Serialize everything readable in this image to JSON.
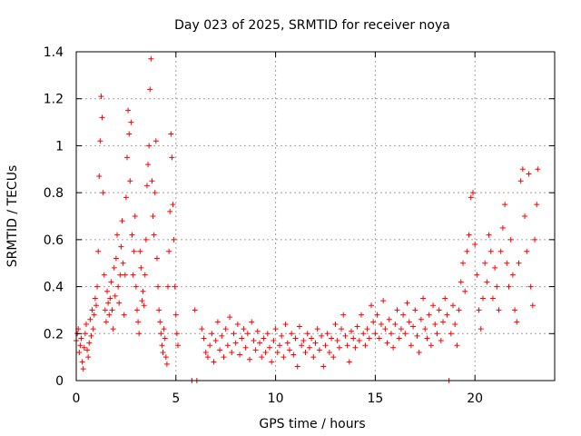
{
  "chart_data": {
    "type": "scatter",
    "title": "Day 023 of 2025, SRMTID for receiver noya",
    "xlabel": "GPS time / hours",
    "ylabel": "SRMTID / TECUs",
    "xlim": [
      0,
      24
    ],
    "ylim": [
      0,
      1.4
    ],
    "xticks": [
      0,
      5,
      10,
      15,
      20
    ],
    "xtick_labels": [
      "0",
      "5",
      "10",
      "15",
      "20"
    ],
    "yticks": [
      0,
      0.2,
      0.4,
      0.6,
      0.8,
      1.0,
      1.2,
      1.4
    ],
    "ytick_labels": [
      "0",
      "0.2",
      "0.4",
      "0.6",
      "0.8",
      "1",
      "1.2",
      "1.4"
    ],
    "grid": true,
    "marker": "+",
    "color": "#ff0000",
    "series": [
      {
        "name": "SRMTID",
        "points": [
          [
            0.0,
            0.17
          ],
          [
            0.05,
            0.2
          ],
          [
            0.1,
            0.22
          ],
          [
            0.15,
            0.12
          ],
          [
            0.2,
            0.15
          ],
          [
            0.25,
            0.18
          ],
          [
            0.3,
            0.08
          ],
          [
            0.35,
            0.05
          ],
          [
            0.4,
            0.14
          ],
          [
            0.45,
            0.2
          ],
          [
            0.5,
            0.24
          ],
          [
            0.55,
            0.13
          ],
          [
            0.6,
            0.1
          ],
          [
            0.65,
            0.16
          ],
          [
            0.7,
            0.26
          ],
          [
            0.75,
            0.19
          ],
          [
            0.8,
            0.3
          ],
          [
            0.85,
            0.22
          ],
          [
            0.9,
            0.28
          ],
          [
            0.95,
            0.35
          ],
          [
            1.0,
            0.32
          ],
          [
            1.05,
            0.4
          ],
          [
            1.1,
            0.55
          ],
          [
            1.15,
            0.87
          ],
          [
            1.2,
            1.02
          ],
          [
            1.25,
            1.21
          ],
          [
            1.3,
            1.12
          ],
          [
            1.35,
            0.8
          ],
          [
            1.4,
            0.45
          ],
          [
            1.45,
            0.3
          ],
          [
            1.5,
            0.25
          ],
          [
            1.55,
            0.38
          ],
          [
            1.6,
            0.33
          ],
          [
            1.65,
            0.28
          ],
          [
            1.7,
            0.35
          ],
          [
            1.75,
            0.42
          ],
          [
            1.8,
            0.3
          ],
          [
            1.85,
            0.22
          ],
          [
            1.9,
            0.48
          ],
          [
            1.95,
            0.36
          ],
          [
            2.0,
            0.52
          ],
          [
            2.05,
            0.62
          ],
          [
            2.1,
            0.4
          ],
          [
            2.15,
            0.33
          ],
          [
            2.2,
            0.45
          ],
          [
            2.25,
            0.57
          ],
          [
            2.3,
            0.68
          ],
          [
            2.35,
            0.5
          ],
          [
            2.4,
            0.28
          ],
          [
            2.45,
            0.45
          ],
          [
            2.5,
            0.78
          ],
          [
            2.55,
            0.95
          ],
          [
            2.6,
            1.15
          ],
          [
            2.65,
            1.05
          ],
          [
            2.7,
            0.85
          ],
          [
            2.75,
            1.1
          ],
          [
            2.8,
            0.62
          ],
          [
            2.85,
            0.45
          ],
          [
            2.9,
            0.55
          ],
          [
            2.95,
            0.7
          ],
          [
            3.0,
            0.4
          ],
          [
            3.05,
            0.3
          ],
          [
            3.1,
            0.25
          ],
          [
            3.15,
            0.2
          ],
          [
            3.2,
            0.55
          ],
          [
            3.25,
            0.48
          ],
          [
            3.3,
            0.34
          ],
          [
            3.35,
            0.38
          ],
          [
            3.4,
            0.32
          ],
          [
            3.45,
            0.45
          ],
          [
            3.5,
            0.6
          ],
          [
            3.55,
            0.83
          ],
          [
            3.6,
            0.92
          ],
          [
            3.65,
            1.0
          ],
          [
            3.7,
            1.24
          ],
          [
            3.75,
            1.37
          ],
          [
            3.8,
            0.85
          ],
          [
            3.85,
            0.7
          ],
          [
            3.9,
            0.62
          ],
          [
            3.95,
            0.8
          ],
          [
            4.0,
            1.02
          ],
          [
            4.05,
            0.52
          ],
          [
            4.1,
            0.4
          ],
          [
            4.15,
            0.3
          ],
          [
            4.2,
            0.25
          ],
          [
            4.25,
            0.2
          ],
          [
            4.3,
            0.15
          ],
          [
            4.35,
            0.12
          ],
          [
            4.4,
            0.22
          ],
          [
            4.45,
            0.18
          ],
          [
            4.5,
            0.1
          ],
          [
            4.55,
            0.07
          ],
          [
            4.6,
            0.4
          ],
          [
            4.65,
            0.55
          ],
          [
            4.7,
            0.72
          ],
          [
            4.75,
            1.05
          ],
          [
            4.8,
            0.95
          ],
          [
            4.85,
            0.75
          ],
          [
            4.9,
            0.6
          ],
          [
            4.95,
            0.4
          ],
          [
            5.0,
            0.28
          ],
          [
            5.05,
            0.2
          ],
          [
            5.1,
            0.15
          ],
          [
            5.8,
            0.0
          ],
          [
            6.05,
            0.0
          ],
          [
            5.95,
            0.3
          ],
          [
            6.3,
            0.22
          ],
          [
            6.4,
            0.18
          ],
          [
            6.5,
            0.12
          ],
          [
            6.6,
            0.1
          ],
          [
            6.7,
            0.15
          ],
          [
            6.8,
            0.2
          ],
          [
            6.9,
            0.08
          ],
          [
            7.0,
            0.17
          ],
          [
            7.1,
            0.25
          ],
          [
            7.2,
            0.13
          ],
          [
            7.3,
            0.19
          ],
          [
            7.4,
            0.1
          ],
          [
            7.5,
            0.22
          ],
          [
            7.6,
            0.15
          ],
          [
            7.7,
            0.27
          ],
          [
            7.8,
            0.12
          ],
          [
            7.9,
            0.2
          ],
          [
            8.0,
            0.16
          ],
          [
            8.1,
            0.24
          ],
          [
            8.2,
            0.11
          ],
          [
            8.3,
            0.18
          ],
          [
            8.4,
            0.22
          ],
          [
            8.5,
            0.14
          ],
          [
            8.6,
            0.2
          ],
          [
            8.7,
            0.09
          ],
          [
            8.8,
            0.25
          ],
          [
            8.9,
            0.17
          ],
          [
            9.0,
            0.13
          ],
          [
            9.1,
            0.21
          ],
          [
            9.2,
            0.16
          ],
          [
            9.3,
            0.1
          ],
          [
            9.4,
            0.18
          ],
          [
            9.5,
            0.12
          ],
          [
            9.6,
            0.2
          ],
          [
            9.7,
            0.14
          ],
          [
            9.8,
            0.08
          ],
          [
            9.9,
            0.17
          ],
          [
            10.0,
            0.22
          ],
          [
            10.1,
            0.12
          ],
          [
            10.2,
            0.15
          ],
          [
            10.3,
            0.19
          ],
          [
            10.4,
            0.1
          ],
          [
            10.5,
            0.24
          ],
          [
            10.6,
            0.16
          ],
          [
            10.7,
            0.13
          ],
          [
            10.8,
            0.2
          ],
          [
            10.9,
            0.11
          ],
          [
            11.0,
            0.18
          ],
          [
            11.1,
            0.06
          ],
          [
            11.2,
            0.23
          ],
          [
            11.3,
            0.15
          ],
          [
            11.4,
            0.17
          ],
          [
            11.5,
            0.12
          ],
          [
            11.6,
            0.2
          ],
          [
            11.7,
            0.14
          ],
          [
            11.8,
            0.18
          ],
          [
            11.9,
            0.1
          ],
          [
            12.0,
            0.16
          ],
          [
            12.1,
            0.22
          ],
          [
            12.2,
            0.13
          ],
          [
            12.3,
            0.19
          ],
          [
            12.4,
            0.06
          ],
          [
            12.5,
            0.15
          ],
          [
            12.6,
            0.2
          ],
          [
            12.7,
            0.12
          ],
          [
            12.8,
            0.18
          ],
          [
            12.9,
            0.1
          ],
          [
            13.0,
            0.24
          ],
          [
            13.1,
            0.17
          ],
          [
            13.2,
            0.14
          ],
          [
            13.3,
            0.22
          ],
          [
            13.4,
            0.28
          ],
          [
            13.5,
            0.19
          ],
          [
            13.6,
            0.15
          ],
          [
            13.7,
            0.08
          ],
          [
            13.8,
            0.21
          ],
          [
            13.9,
            0.18
          ],
          [
            14.0,
            0.14
          ],
          [
            14.1,
            0.23
          ],
          [
            14.2,
            0.17
          ],
          [
            14.3,
            0.28
          ],
          [
            14.4,
            0.2
          ],
          [
            14.5,
            0.15
          ],
          [
            14.6,
            0.22
          ],
          [
            14.7,
            0.18
          ],
          [
            14.8,
            0.32
          ],
          [
            14.9,
            0.25
          ],
          [
            15.0,
            0.2
          ],
          [
            15.1,
            0.28
          ],
          [
            15.2,
            0.18
          ],
          [
            15.3,
            0.24
          ],
          [
            15.4,
            0.34
          ],
          [
            15.5,
            0.22
          ],
          [
            15.6,
            0.16
          ],
          [
            15.7,
            0.26
          ],
          [
            15.8,
            0.2
          ],
          [
            15.9,
            0.14
          ],
          [
            16.0,
            0.24
          ],
          [
            16.1,
            0.3
          ],
          [
            16.2,
            0.18
          ],
          [
            16.3,
            0.22
          ],
          [
            16.4,
            0.28
          ],
          [
            16.5,
            0.2
          ],
          [
            16.6,
            0.33
          ],
          [
            16.7,
            0.25
          ],
          [
            16.8,
            0.15
          ],
          [
            16.9,
            0.23
          ],
          [
            17.0,
            0.3
          ],
          [
            17.1,
            0.19
          ],
          [
            17.2,
            0.12
          ],
          [
            17.3,
            0.26
          ],
          [
            17.4,
            0.35
          ],
          [
            17.5,
            0.22
          ],
          [
            17.6,
            0.18
          ],
          [
            17.7,
            0.28
          ],
          [
            17.8,
            0.15
          ],
          [
            17.9,
            0.32
          ],
          [
            18.0,
            0.24
          ],
          [
            18.1,
            0.2
          ],
          [
            18.2,
            0.3
          ],
          [
            18.3,
            0.17
          ],
          [
            18.4,
            0.25
          ],
          [
            18.5,
            0.35
          ],
          [
            18.6,
            0.28
          ],
          [
            18.7,
            0.0
          ],
          [
            18.8,
            0.2
          ],
          [
            18.9,
            0.32
          ],
          [
            19.0,
            0.24
          ],
          [
            19.1,
            0.15
          ],
          [
            19.2,
            0.3
          ],
          [
            19.3,
            0.42
          ],
          [
            19.4,
            0.5
          ],
          [
            19.5,
            0.38
          ],
          [
            19.6,
            0.55
          ],
          [
            19.7,
            0.62
          ],
          [
            19.8,
            0.78
          ],
          [
            19.9,
            0.8
          ],
          [
            20.0,
            0.58
          ],
          [
            20.1,
            0.45
          ],
          [
            20.2,
            0.3
          ],
          [
            20.3,
            0.22
          ],
          [
            20.4,
            0.35
          ],
          [
            20.5,
            0.5
          ],
          [
            20.6,
            0.42
          ],
          [
            20.7,
            0.62
          ],
          [
            20.8,
            0.55
          ],
          [
            20.9,
            0.35
          ],
          [
            21.0,
            0.48
          ],
          [
            21.1,
            0.4
          ],
          [
            21.2,
            0.3
          ],
          [
            21.3,
            0.55
          ],
          [
            21.4,
            0.65
          ],
          [
            21.5,
            0.75
          ],
          [
            21.6,
            0.5
          ],
          [
            21.7,
            0.4
          ],
          [
            21.8,
            0.6
          ],
          [
            21.9,
            0.45
          ],
          [
            22.0,
            0.3
          ],
          [
            22.1,
            0.25
          ],
          [
            22.2,
            0.5
          ],
          [
            22.3,
            0.85
          ],
          [
            22.4,
            0.9
          ],
          [
            22.5,
            0.7
          ],
          [
            22.6,
            0.55
          ],
          [
            22.7,
            0.88
          ],
          [
            22.8,
            0.4
          ],
          [
            22.9,
            0.32
          ],
          [
            23.0,
            0.6
          ],
          [
            23.1,
            0.75
          ],
          [
            23.15,
            0.9
          ]
        ]
      }
    ]
  }
}
